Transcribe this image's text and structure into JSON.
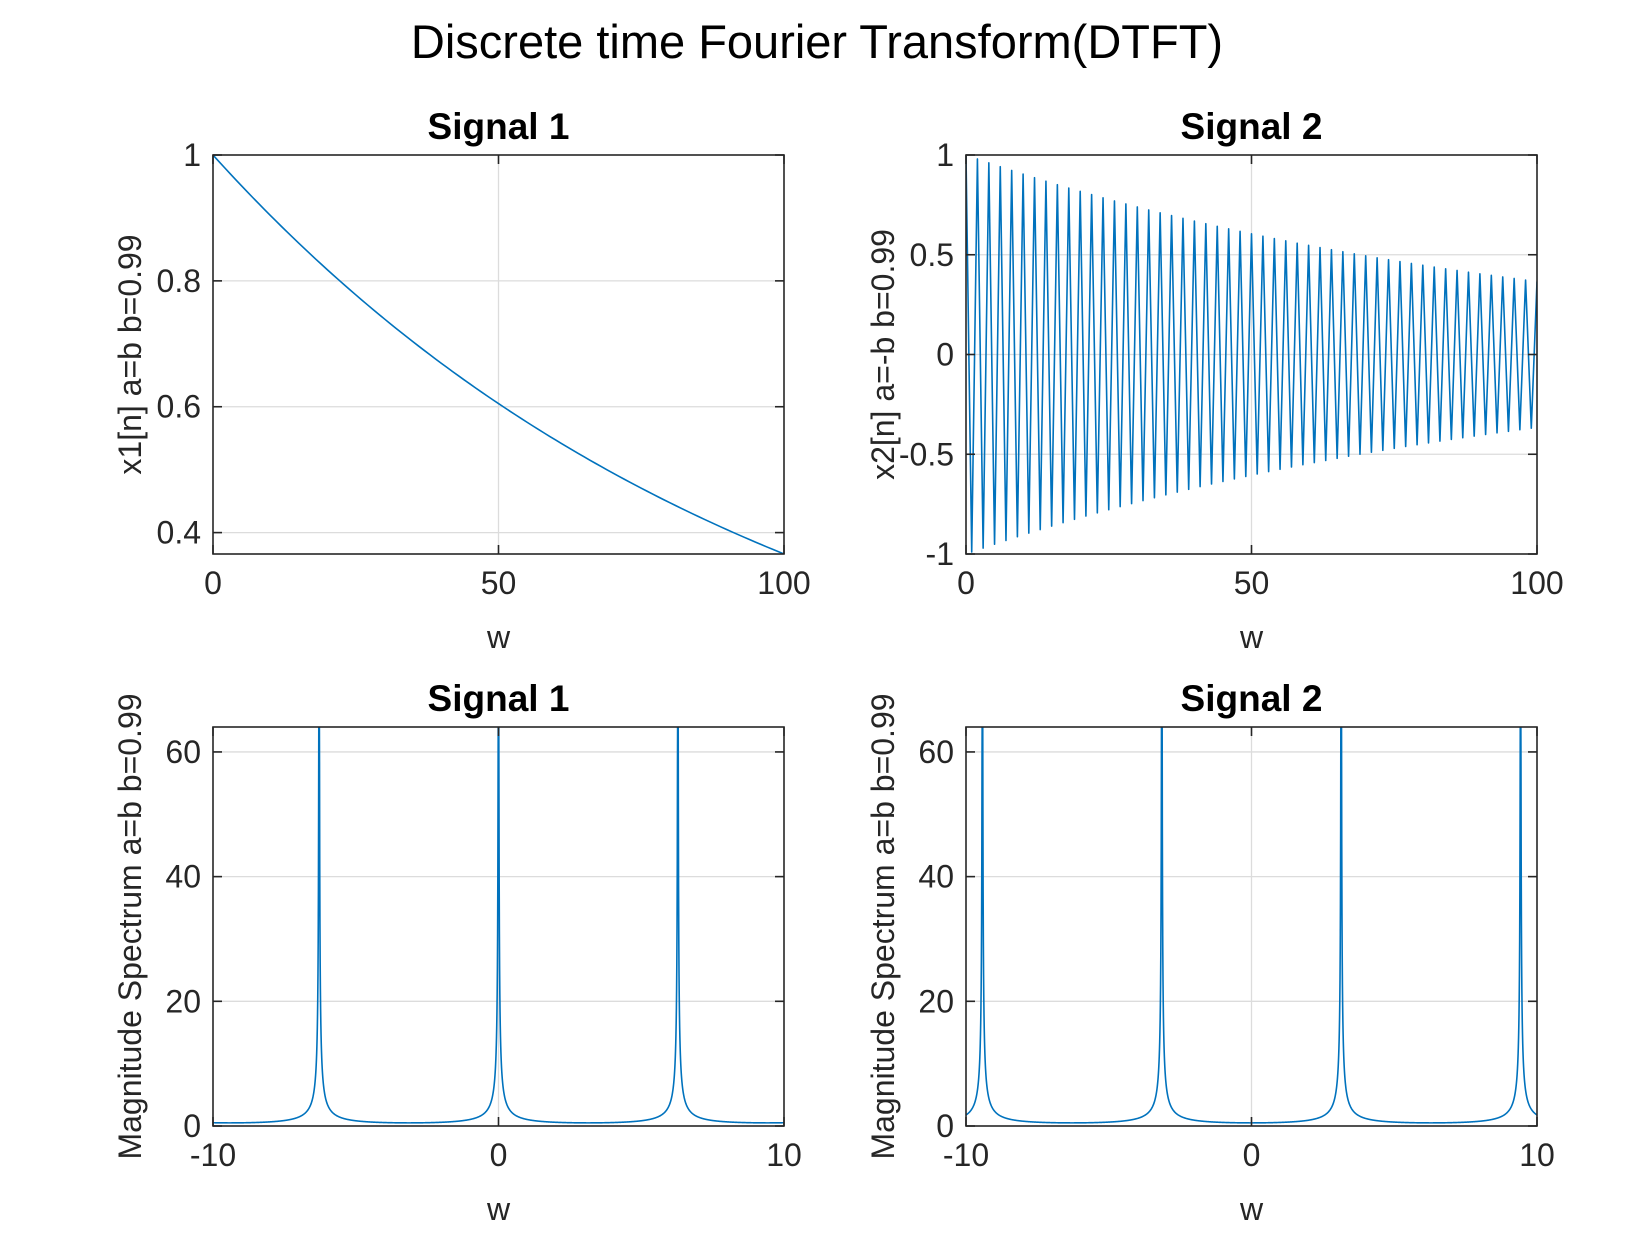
{
  "figure": {
    "title": "Discrete time Fourier Transform(DTFT)"
  },
  "chart_data": [
    {
      "id": "signal1-time",
      "type": "line",
      "title": "Signal 1",
      "xlabel": "w",
      "ylabel": "x1[n] a=b b=0.99",
      "xlim": [
        0,
        100
      ],
      "ylim": [
        0.366,
        1.0
      ],
      "xticks": [
        "0",
        "50",
        "100"
      ],
      "yticks": [
        "0.4",
        "0.6",
        "0.8",
        "1"
      ],
      "grid": true,
      "color": "#0072BD",
      "series": [
        {
          "generator": "decay",
          "n_start": 0,
          "n_end": 100,
          "b": 0.99
        }
      ]
    },
    {
      "id": "signal2-time",
      "type": "line",
      "title": "Signal 2",
      "xlabel": "w",
      "ylabel": "x2[n] a=-b b=0.99",
      "xlim": [
        0,
        100
      ],
      "ylim": [
        -1,
        1
      ],
      "xticks": [
        "0",
        "50",
        "100"
      ],
      "yticks": [
        "-1",
        "-0.5",
        "0",
        "0.5",
        "1"
      ],
      "grid": true,
      "color": "#0072BD",
      "series": [
        {
          "generator": "alternating-decay",
          "n_start": 0,
          "n_end": 100,
          "b": 0.99
        }
      ]
    },
    {
      "id": "signal1-spectrum",
      "type": "line",
      "title": "Signal 1",
      "xlabel": "w",
      "ylabel": "Magnitude Spectrum a=b b=0.99",
      "xlim": [
        -10,
        10
      ],
      "ylim": [
        0,
        64
      ],
      "xticks": [
        "-10",
        "0",
        "10"
      ],
      "yticks": [
        "0",
        "20",
        "40",
        "60"
      ],
      "grid": true,
      "color": "#0072BD",
      "series": [
        {
          "generator": "dtft-magnitude",
          "a": 0.99,
          "w_start": -10,
          "w_end": 10,
          "peaks_at": [
            -6.283,
            0,
            6.283
          ],
          "peak_value": 63.4
        }
      ]
    },
    {
      "id": "signal2-spectrum",
      "type": "line",
      "title": "Signal 2",
      "xlabel": "w",
      "ylabel": "Magnitude Spectrum a=b b=0.99",
      "xlim": [
        -10,
        10
      ],
      "ylim": [
        0,
        64
      ],
      "xticks": [
        "-10",
        "0",
        "10"
      ],
      "yticks": [
        "0",
        "20",
        "40",
        "60"
      ],
      "grid": true,
      "color": "#0072BD",
      "series": [
        {
          "generator": "dtft-magnitude",
          "a": -0.99,
          "w_start": -10,
          "w_end": 10,
          "peaks_at": [
            -9.425,
            -3.142,
            3.142,
            9.425
          ],
          "peak_value": 63.4
        }
      ]
    }
  ]
}
